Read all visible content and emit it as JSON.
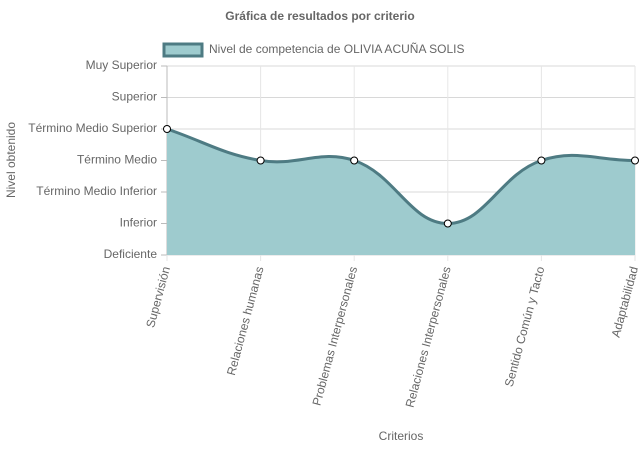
{
  "chart_data": {
    "type": "line",
    "title": "Gráfica de resultados por criterio",
    "xlabel": "Criterios",
    "ylabel": "Nivel obtenido",
    "categories": [
      "Supervisión",
      "Relaciones humanas",
      "Problemas Interpersonales",
      "Relaciones Interpersonales",
      "Sentido Común y Tacto",
      "Adaptabilidad"
    ],
    "series": [
      {
        "name": "Nivel de competencia de OLIVIA ACUÑA SOLIS",
        "color": "#4e7b83",
        "fill_color": "#9ecbce",
        "values": [
          4,
          3,
          3,
          1,
          3,
          3
        ]
      }
    ],
    "ylim": [
      0,
      6
    ],
    "yticks": [
      {
        "value": 0,
        "label": "Deficiente"
      },
      {
        "value": 1,
        "label": "Inferior"
      },
      {
        "value": 2,
        "label": "Término Medio Inferior"
      },
      {
        "value": 3,
        "label": "Término Medio"
      },
      {
        "value": 4,
        "label": "Término Medio Superior"
      },
      {
        "value": 5,
        "label": "Superior"
      },
      {
        "value": 6,
        "label": "Muy Superior"
      }
    ],
    "grid": true,
    "legend": "top"
  }
}
